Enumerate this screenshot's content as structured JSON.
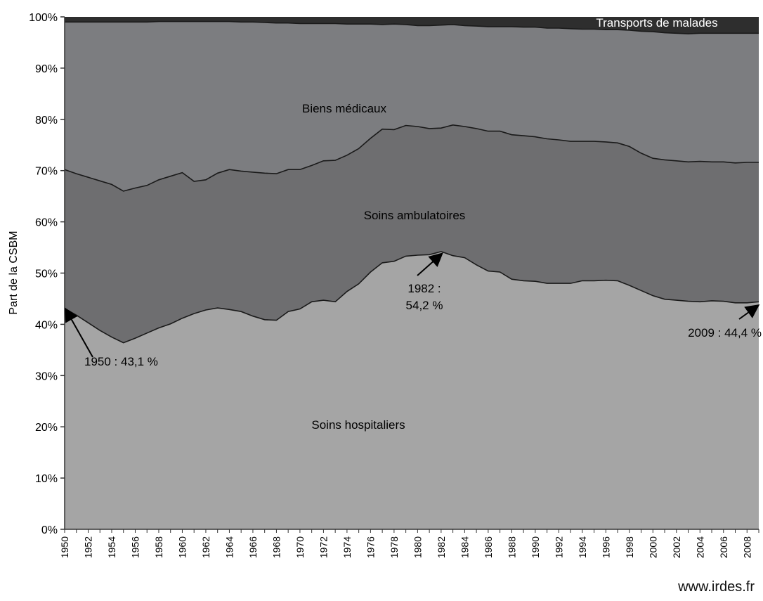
{
  "source": "www.irdes.fr",
  "chart_data": {
    "type": "area",
    "stacked_percent": true,
    "ylabel": "Part de la CSBM",
    "xlabel": "",
    "ylim": [
      0,
      100
    ],
    "yticks": [
      "0%",
      "10%",
      "20%",
      "30%",
      "40%",
      "50%",
      "60%",
      "70%",
      "80%",
      "90%",
      "100%"
    ],
    "x": [
      1950,
      1951,
      1952,
      1953,
      1954,
      1955,
      1956,
      1957,
      1958,
      1959,
      1960,
      1961,
      1962,
      1963,
      1964,
      1965,
      1966,
      1967,
      1968,
      1969,
      1970,
      1971,
      1972,
      1973,
      1974,
      1975,
      1976,
      1977,
      1978,
      1979,
      1980,
      1981,
      1982,
      1983,
      1984,
      1985,
      1986,
      1987,
      1988,
      1989,
      1990,
      1991,
      1992,
      1993,
      1994,
      1995,
      1996,
      1997,
      1998,
      1999,
      2000,
      2001,
      2002,
      2003,
      2004,
      2005,
      2006,
      2007,
      2008,
      2009
    ],
    "xtick_labels": [
      "1950",
      "1952",
      "1954",
      "1956",
      "1958",
      "1960",
      "1962",
      "1964",
      "1966",
      "1968",
      "1970",
      "1972",
      "1974",
      "1976",
      "1978",
      "1980",
      "1982",
      "1984",
      "1986",
      "1988",
      "1990",
      "1992",
      "1994",
      "1996",
      "1998",
      "2000",
      "2002",
      "2004",
      "2006",
      "2008"
    ],
    "series": [
      {
        "name": "Soins hospitaliers",
        "color": "#a5a5a5",
        "values": [
          43.1,
          41.8,
          40.3,
          38.8,
          37.5,
          36.4,
          37.3,
          38.3,
          39.3,
          40.1,
          41.2,
          42.1,
          42.8,
          43.2,
          42.9,
          42.5,
          41.6,
          40.9,
          40.8,
          42.5,
          43.0,
          44.4,
          44.7,
          44.4,
          46.4,
          47.9,
          50.2,
          52.0,
          52.3,
          53.3,
          53.5,
          53.6,
          54.2,
          53.4,
          53.0,
          51.6,
          50.4,
          50.2,
          48.8,
          48.5,
          48.4,
          48.0,
          48.0,
          48.0,
          48.5,
          48.5,
          48.6,
          48.5,
          47.6,
          46.6,
          45.6,
          44.9,
          44.7,
          44.5,
          44.4,
          44.6,
          44.5,
          44.2,
          44.2,
          44.4
        ]
      },
      {
        "name": "Soins ambulatoires",
        "color": "#6e6e70",
        "values": [
          27.1,
          27.6,
          28.4,
          29.2,
          29.8,
          29.6,
          29.3,
          28.8,
          28.9,
          28.8,
          28.4,
          25.8,
          25.4,
          26.3,
          27.3,
          27.4,
          28.1,
          28.6,
          28.6,
          27.7,
          27.2,
          26.6,
          27.2,
          27.6,
          26.6,
          26.4,
          26.1,
          26.1,
          25.7,
          25.5,
          25.1,
          24.6,
          24.1,
          25.5,
          25.6,
          26.6,
          27.3,
          27.5,
          28.2,
          28.3,
          28.2,
          28.2,
          28.0,
          27.7,
          27.2,
          27.2,
          27.0,
          26.9,
          27.1,
          26.8,
          26.8,
          27.2,
          27.2,
          27.2,
          27.4,
          27.1,
          27.2,
          27.3,
          27.4,
          27.2
        ]
      },
      {
        "name": "Biens médicaux",
        "color": "#7c7d80",
        "values": [
          28.8,
          29.6,
          30.3,
          31.0,
          31.7,
          33.0,
          32.4,
          31.9,
          30.9,
          30.2,
          29.5,
          31.2,
          30.9,
          29.6,
          28.9,
          29.1,
          29.3,
          29.4,
          29.4,
          28.6,
          28.5,
          27.7,
          26.8,
          26.7,
          25.6,
          24.3,
          22.3,
          20.4,
          20.6,
          19.7,
          19.7,
          20.1,
          20.1,
          19.6,
          19.7,
          20.0,
          20.4,
          20.4,
          21.1,
          21.2,
          21.4,
          21.6,
          21.8,
          22.0,
          21.9,
          21.9,
          21.9,
          22.1,
          22.7,
          23.8,
          24.7,
          24.8,
          24.9,
          25.0,
          25.0,
          25.1,
          25.1,
          25.3,
          25.2,
          25.2
        ]
      },
      {
        "name": "Transports de malades",
        "color": "#2e2e2e",
        "values": [
          1.0,
          1.0,
          1.0,
          1.0,
          1.0,
          1.0,
          1.0,
          1.0,
          0.9,
          0.9,
          0.9,
          0.9,
          0.9,
          0.9,
          0.9,
          1.0,
          1.0,
          1.1,
          1.2,
          1.2,
          1.3,
          1.3,
          1.3,
          1.3,
          1.4,
          1.4,
          1.4,
          1.5,
          1.4,
          1.5,
          1.7,
          1.7,
          1.6,
          1.5,
          1.7,
          1.8,
          1.9,
          1.9,
          1.9,
          2.0,
          2.0,
          2.2,
          2.2,
          2.3,
          2.4,
          2.4,
          2.5,
          2.5,
          2.6,
          2.8,
          2.9,
          3.1,
          3.2,
          3.3,
          3.2,
          3.2,
          3.2,
          3.2,
          3.2,
          3.2
        ]
      }
    ],
    "area_labels": [
      "Biens médicaux",
      "Soins ambulatoires",
      "Soins hospitaliers",
      "Transports de malades"
    ],
    "annotations": [
      {
        "text": "1950 : 43,1 %",
        "x": 1950,
        "y": 43.1
      },
      {
        "text_lines": [
          "1982 :",
          "54,2 %"
        ],
        "x": 1982,
        "y": 54.2
      },
      {
        "text": "2009 : 44,4 %",
        "x": 2009,
        "y": 44.4
      }
    ],
    "grid": false,
    "legend": "none"
  }
}
